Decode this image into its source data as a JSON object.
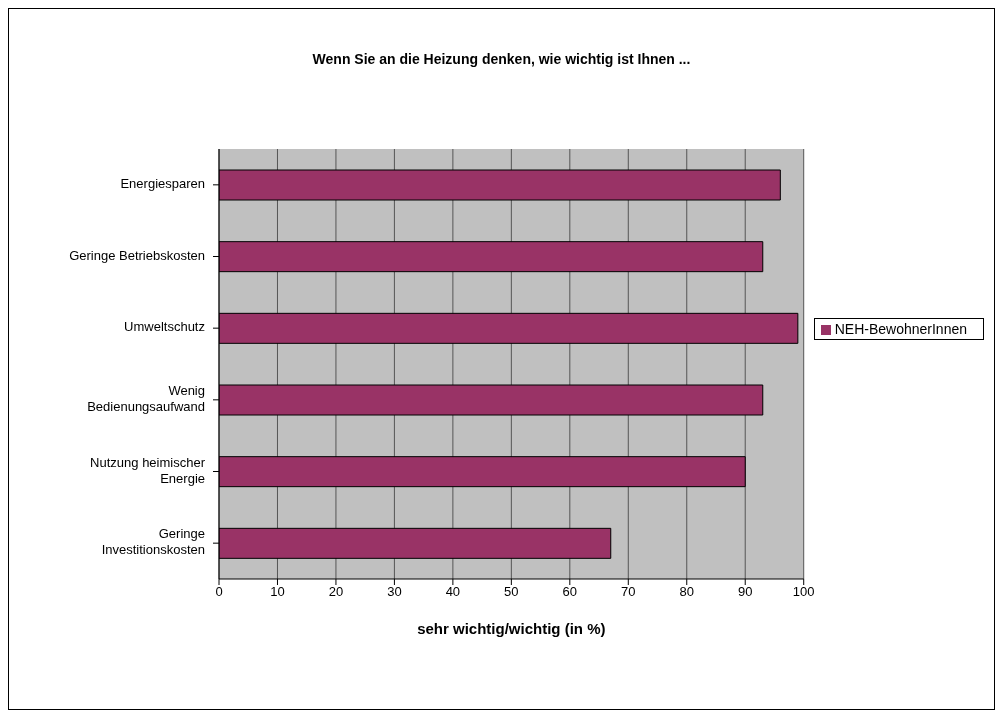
{
  "chart_data": {
    "type": "bar",
    "orientation": "horizontal",
    "title": "Wenn Sie an die Heizung denken, wie wichtig ist Ihnen ...",
    "xlabel": "sehr wichtig/wichtig (in %)",
    "categories": [
      "Energiesparen",
      "Geringe Betriebskosten",
      "Umweltschutz",
      "Wenig Bedienungsaufwand",
      "Nutzung heimischer Energie",
      "Geringe Investitionskosten"
    ],
    "series": [
      {
        "name": "NEH-BewohnerInnen",
        "color": "#993366",
        "values": [
          96,
          93,
          99,
          93,
          90,
          67
        ]
      }
    ],
    "xlim": [
      0,
      100
    ],
    "xticks": [
      0,
      10,
      20,
      30,
      40,
      50,
      60,
      70,
      80,
      90,
      100
    ],
    "grid": "x",
    "legend": "right"
  }
}
